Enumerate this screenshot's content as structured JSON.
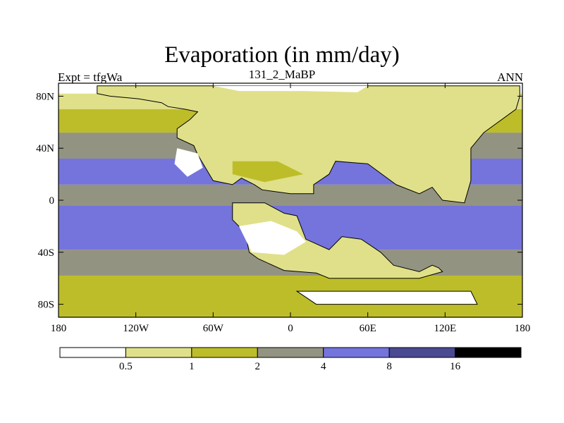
{
  "chart_data": {
    "type": "heatmap",
    "title": "Evaporation (in mm/day)",
    "left_string": "Expt = tfgWa",
    "center_string": "131_2_MaBP",
    "right_string": "ANN",
    "x_range": [
      -180,
      180
    ],
    "y_range": [
      -90,
      90
    ],
    "x_ticks": [
      {
        "value": -180,
        "label": "180"
      },
      {
        "value": -120,
        "label": "120W"
      },
      {
        "value": -60,
        "label": "60W"
      },
      {
        "value": 0,
        "label": "0"
      },
      {
        "value": 60,
        "label": "60E"
      },
      {
        "value": 120,
        "label": "120E"
      },
      {
        "value": 180,
        "label": "180"
      }
    ],
    "y_ticks": [
      {
        "value": 80,
        "label": "80N"
      },
      {
        "value": 40,
        "label": "40N"
      },
      {
        "value": 0,
        "label": "0"
      },
      {
        "value": -40,
        "label": "40S"
      },
      {
        "value": -80,
        "label": "80S"
      }
    ],
    "colorbar": {
      "levels": [
        {
          "label": "0.5"
        },
        {
          "label": "1"
        },
        {
          "label": "2"
        },
        {
          "label": "4"
        },
        {
          "label": "8"
        },
        {
          "label": "16"
        }
      ],
      "colors": [
        "#ffffff",
        "#e0e08a",
        "#bdbd2a",
        "#939382",
        "#7474dc",
        "#4a4a92",
        "#000000"
      ]
    },
    "zonal_bands": [
      {
        "lat_from": 90,
        "lat_to": 82,
        "level": 0
      },
      {
        "lat_from": 82,
        "lat_to": 70,
        "level": 1
      },
      {
        "lat_from": 70,
        "lat_to": 52,
        "level": 2
      },
      {
        "lat_from": 52,
        "lat_to": 32,
        "level": 3
      },
      {
        "lat_from": 32,
        "lat_to": 12,
        "level": 4
      },
      {
        "lat_from": 12,
        "lat_to": -4,
        "level": 3
      },
      {
        "lat_from": -4,
        "lat_to": -38,
        "level": 4
      },
      {
        "lat_from": -38,
        "lat_to": -58,
        "level": 3
      },
      {
        "lat_from": -58,
        "lat_to": -90,
        "level": 2
      }
    ],
    "land_regions": [
      {
        "name": "north-landmass",
        "level": 1,
        "coords": [
          [
            -150,
            82
          ],
          [
            -140,
            80
          ],
          [
            -118,
            78
          ],
          [
            -100,
            75
          ],
          [
            -95,
            72
          ],
          [
            -82,
            70
          ],
          [
            -72,
            68
          ],
          [
            -78,
            62
          ],
          [
            -88,
            55
          ],
          [
            -88,
            48
          ],
          [
            -75,
            42
          ],
          [
            -72,
            35
          ],
          [
            -66,
            25
          ],
          [
            -60,
            15
          ],
          [
            -45,
            12
          ],
          [
            -38,
            17
          ],
          [
            -28,
            12
          ],
          [
            -22,
            8
          ],
          [
            0,
            5
          ],
          [
            18,
            5
          ],
          [
            18,
            12
          ],
          [
            30,
            20
          ],
          [
            35,
            30
          ],
          [
            60,
            28
          ],
          [
            82,
            12
          ],
          [
            100,
            5
          ],
          [
            110,
            10
          ],
          [
            118,
            0
          ],
          [
            135,
            -2
          ],
          [
            140,
            15
          ],
          [
            140,
            40
          ],
          [
            150,
            52
          ],
          [
            175,
            70
          ],
          [
            178,
            80
          ],
          [
            178,
            88
          ],
          [
            -150,
            88
          ]
        ]
      },
      {
        "name": "north-cold-interior",
        "level": 0,
        "coords": [
          [
            -88,
            40
          ],
          [
            -72,
            36
          ],
          [
            -68,
            25
          ],
          [
            -80,
            18
          ],
          [
            -90,
            28
          ]
        ]
      },
      {
        "name": "north-high-arctic",
        "level": 0,
        "coords": [
          [
            -60,
            88
          ],
          [
            60,
            88
          ],
          [
            52,
            83
          ],
          [
            10,
            84
          ],
          [
            -40,
            84
          ]
        ]
      },
      {
        "name": "north-interior-dry",
        "level": 2,
        "coords": [
          [
            -45,
            30
          ],
          [
            -10,
            30
          ],
          [
            10,
            20
          ],
          [
            -20,
            14
          ],
          [
            -45,
            20
          ]
        ]
      },
      {
        "name": "south-landmass",
        "level": 1,
        "coords": [
          [
            -45,
            -2
          ],
          [
            -20,
            -2
          ],
          [
            -5,
            -10
          ],
          [
            5,
            -12
          ],
          [
            12,
            -30
          ],
          [
            30,
            -38
          ],
          [
            40,
            -28
          ],
          [
            55,
            -30
          ],
          [
            70,
            -40
          ],
          [
            80,
            -50
          ],
          [
            100,
            -55
          ],
          [
            110,
            -50
          ],
          [
            115,
            -52
          ],
          [
            118,
            -55
          ],
          [
            100,
            -60
          ],
          [
            30,
            -60
          ],
          [
            20,
            -56
          ],
          [
            -5,
            -54
          ],
          [
            -25,
            -45
          ],
          [
            -32,
            -40
          ],
          [
            -35,
            -25
          ],
          [
            -45,
            -15
          ]
        ]
      },
      {
        "name": "south-dry-interior",
        "level": 0,
        "coords": [
          [
            -40,
            -20
          ],
          [
            -15,
            -16
          ],
          [
            5,
            -24
          ],
          [
            12,
            -32
          ],
          [
            -5,
            -42
          ],
          [
            -30,
            -40
          ],
          [
            -35,
            -30
          ]
        ]
      },
      {
        "name": "antarctic-ice",
        "level": 0,
        "coords": [
          [
            5,
            -70
          ],
          [
            140,
            -70
          ],
          [
            145,
            -80
          ],
          [
            20,
            -80
          ]
        ]
      }
    ]
  }
}
